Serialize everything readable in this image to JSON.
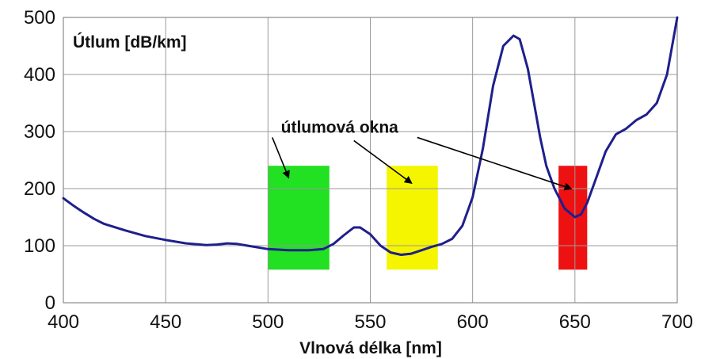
{
  "chart_data": {
    "type": "line",
    "ylabel": "Útlum [dB/km]",
    "xlabel": "Vlnová délka [nm]",
    "xlim": [
      400,
      700
    ],
    "ylim": [
      0,
      500
    ],
    "x_ticks": [
      "400",
      "450",
      "500",
      "550",
      "600",
      "650",
      "700"
    ],
    "y_ticks": [
      "0",
      "100",
      "200",
      "300",
      "400",
      "500"
    ],
    "grid": true,
    "line_color": "#1f1f8c",
    "series": [
      {
        "x": [
          400,
          405,
          410,
          415,
          420,
          430,
          440,
          450,
          460,
          470,
          475,
          480,
          485,
          490,
          500,
          510,
          520,
          527,
          532,
          537,
          542,
          545,
          550,
          555,
          560,
          565,
          570,
          575,
          580,
          585,
          590,
          595,
          600,
          605,
          610,
          615,
          620,
          623,
          627,
          630,
          633,
          636,
          640,
          645,
          650,
          653,
          656,
          660,
          665,
          670,
          675,
          680,
          685,
          690,
          695,
          700
        ],
        "y": [
          183,
          170,
          158,
          147,
          138,
          127,
          117,
          110,
          104,
          101,
          102,
          104,
          103,
          100,
          94,
          92,
          92,
          94,
          103,
          118,
          132,
          132,
          120,
          100,
          88,
          84,
          86,
          92,
          98,
          103,
          112,
          135,
          185,
          270,
          380,
          450,
          468,
          462,
          410,
          350,
          290,
          240,
          200,
          165,
          150,
          155,
          175,
          215,
          265,
          295,
          305,
          320,
          330,
          350,
          400,
          500
        ]
      }
    ],
    "windows": [
      {
        "x_start": 500,
        "x_end": 530,
        "y_start": 58,
        "y_end": 240,
        "color": "#22e022"
      },
      {
        "x_start": 558,
        "x_end": 583,
        "y_start": 58,
        "y_end": 240,
        "color": "#f5f500"
      },
      {
        "x_start": 642,
        "x_end": 656,
        "y_start": 58,
        "y_end": 240,
        "color": "#ee1111"
      }
    ],
    "annotation": {
      "text": "útlumová okna",
      "arrow_targets": [
        [
          510,
          220
        ],
        [
          570,
          210
        ],
        [
          648,
          200
        ]
      ]
    }
  }
}
